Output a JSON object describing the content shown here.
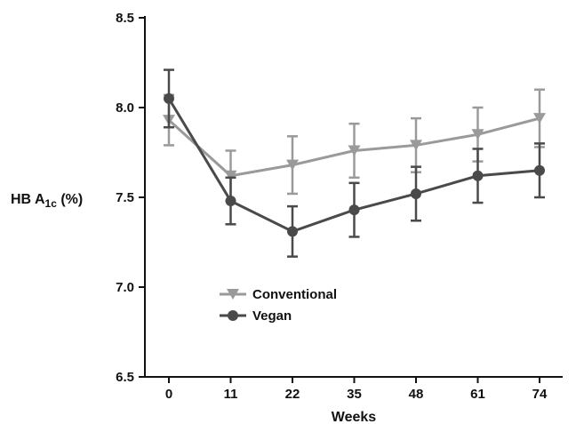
{
  "chart_data": {
    "type": "line",
    "xlabel": "Weeks",
    "ylabel": {
      "main": "HB A",
      "sub": "1c",
      "tail": " (%)"
    },
    "categories": [
      "0",
      "11",
      "22",
      "35",
      "48",
      "61",
      "74"
    ],
    "ylim": [
      6.5,
      8.5
    ],
    "y_ticks": [
      "6.5",
      "7.0",
      "7.5",
      "8.0",
      "8.5"
    ],
    "grid": false,
    "legend": "lower-left inside plot",
    "series": [
      {
        "name": "Conventional",
        "marker": "triangle-down",
        "color": "#9a9a9a",
        "values": [
          7.93,
          7.62,
          7.68,
          7.76,
          7.79,
          7.85,
          7.94
        ],
        "error": [
          0.14,
          0.14,
          0.16,
          0.15,
          0.15,
          0.15,
          0.16
        ]
      },
      {
        "name": "Vegan",
        "marker": "circle",
        "color": "#4a4a4a",
        "values": [
          8.05,
          7.48,
          7.31,
          7.43,
          7.52,
          7.62,
          7.65
        ],
        "error": [
          0.16,
          0.13,
          0.14,
          0.15,
          0.15,
          0.15,
          0.15
        ]
      }
    ]
  }
}
